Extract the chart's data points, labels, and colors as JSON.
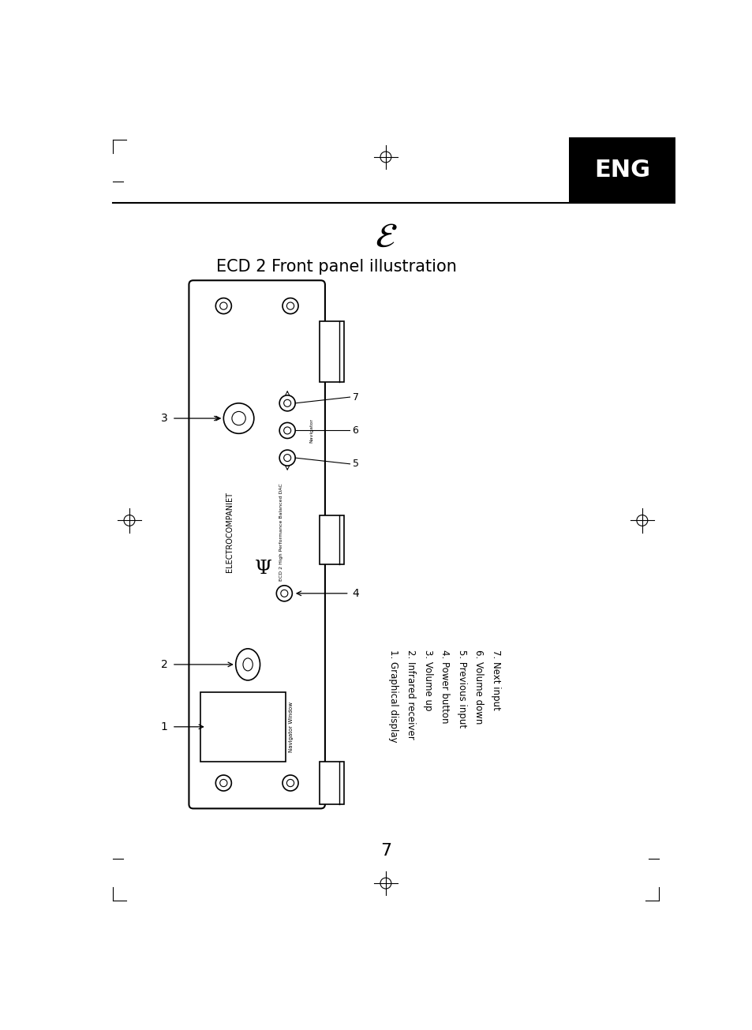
{
  "title": "ECD 2 Front panel illustration",
  "page_number": "7",
  "lang_label": "ENG",
  "background_color": "#ffffff",
  "legend": [
    "1. Graphical display",
    "2. Infrared receiver",
    "3. Volume up",
    "4. Power button",
    "5. Previous input",
    "6. Volume down",
    "7. Next input"
  ],
  "electrocompaniet_text": "ELECTROCOMPANIET",
  "subtitle_text": "ECD 2 High Performance Balanced DAC",
  "nav_window_label": "Navigator Window",
  "navigator_label": "Navigator"
}
